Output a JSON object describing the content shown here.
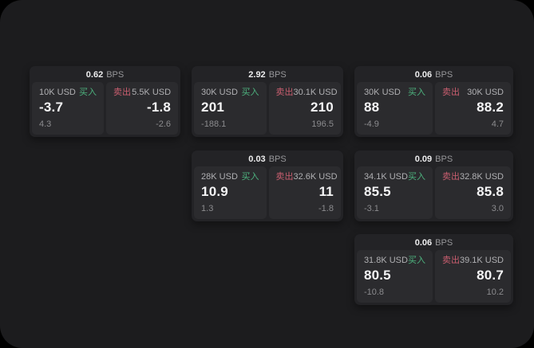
{
  "labels": {
    "buy": "买入",
    "sell": "卖出",
    "bps_unit": "BPS"
  },
  "colors": {
    "buy": "#4db27e",
    "sell": "#c95e6f"
  },
  "cards": [
    {
      "bps": "0.62",
      "buy": {
        "notional": "10K USD",
        "price": "-3.7",
        "delta": "4.3"
      },
      "sell": {
        "notional": "5.5K USD",
        "price": "-1.8",
        "delta": "-2.6"
      }
    },
    {
      "bps": "2.92",
      "buy": {
        "notional": "30K USD",
        "price": "201",
        "delta": "-188.1"
      },
      "sell": {
        "notional": "30.1K USD",
        "price": "210",
        "delta": "196.5"
      }
    },
    {
      "bps": "0.06",
      "buy": {
        "notional": "30K USD",
        "price": "88",
        "delta": "-4.9"
      },
      "sell": {
        "notional": "30K USD",
        "price": "88.2",
        "delta": "4.7"
      }
    },
    {
      "bps": "0.03",
      "buy": {
        "notional": "28K USD",
        "price": "10.9",
        "delta": "1.3"
      },
      "sell": {
        "notional": "32.6K USD",
        "price": "11",
        "delta": "-1.8"
      }
    },
    {
      "bps": "0.09",
      "buy": {
        "notional": "34.1K USD",
        "price": "85.5",
        "delta": "-3.1"
      },
      "sell": {
        "notional": "32.8K USD",
        "price": "85.8",
        "delta": "3.0"
      }
    },
    {
      "bps": "0.06",
      "buy": {
        "notional": "31.8K USD",
        "price": "80.5",
        "delta": "-10.8"
      },
      "sell": {
        "notional": "39.1K USD",
        "price": "80.7",
        "delta": "10.2"
      }
    }
  ]
}
